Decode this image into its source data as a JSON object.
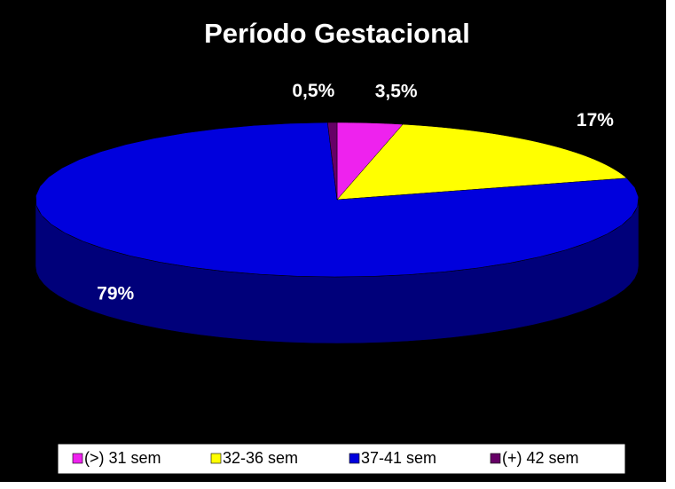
{
  "chart_data": {
    "type": "pie",
    "title": "Período Gestacional",
    "categories": [
      "(>) 31 sem",
      "32-36 sem",
      "37-41 sem",
      "(+) 42 sem"
    ],
    "values": [
      3.5,
      17,
      79,
      0.5
    ],
    "value_labels": [
      "3,5%",
      "17%",
      "79%",
      "0,5%"
    ],
    "colors": [
      "#ee22ee",
      "#ffff00",
      "#0000dd",
      "#660066"
    ],
    "legend": "bottom"
  }
}
